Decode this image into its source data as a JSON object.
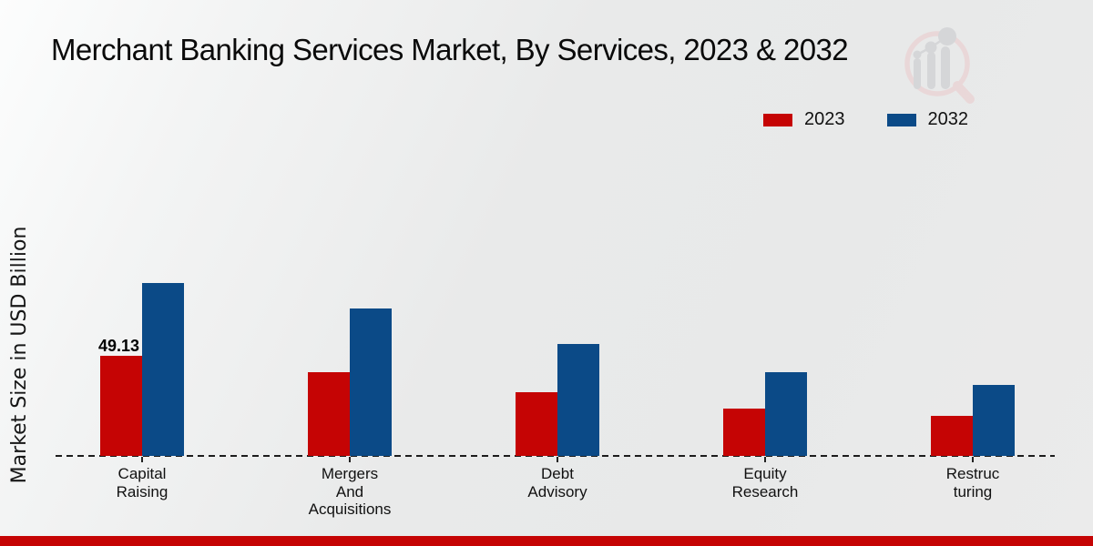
{
  "header": {
    "title": "Merchant Banking Services Market, By Services, 2023 & 2032"
  },
  "legend": {
    "items": [
      {
        "label": "2023",
        "color": "#c50404"
      },
      {
        "label": "2032",
        "color": "#0b4a87"
      }
    ]
  },
  "yaxis": {
    "label": "Market Size in USD Billion"
  },
  "footer": {
    "bar_color": "#c50404"
  },
  "logo": {
    "icon": "magnifier-bar-chart-watermark"
  },
  "chart_data": {
    "type": "bar",
    "title": "Merchant Banking Services Market, By Services, 2023 & 2032",
    "ylabel": "Market Size in USD Billion",
    "categories": [
      "Capital Raising",
      "Mergers And Acquisitions",
      "Debt Advisory",
      "Equity Research",
      "Restructuring"
    ],
    "category_label_lines": [
      [
        "Capital",
        "Raising"
      ],
      [
        "Mergers",
        "And",
        "Acquisitions"
      ],
      [
        "Debt",
        "Advisory"
      ],
      [
        "Equity",
        "Research"
      ],
      [
        "Restruc",
        "turing"
      ]
    ],
    "series": [
      {
        "name": "2023",
        "color": "#c50404",
        "values": [
          49.13,
          41.2,
          31.3,
          23.4,
          19.6
        ]
      },
      {
        "name": "2032",
        "color": "#0b4a87",
        "values": [
          84.9,
          72.3,
          54.8,
          41.2,
          34.8
        ]
      }
    ],
    "value_labels": [
      {
        "series_index": 0,
        "category_index": 0,
        "text": "49.13"
      }
    ],
    "baseline_style": "dashed",
    "grid": false,
    "yaxis_ticks_visible": false,
    "legend_position": "top-right"
  }
}
